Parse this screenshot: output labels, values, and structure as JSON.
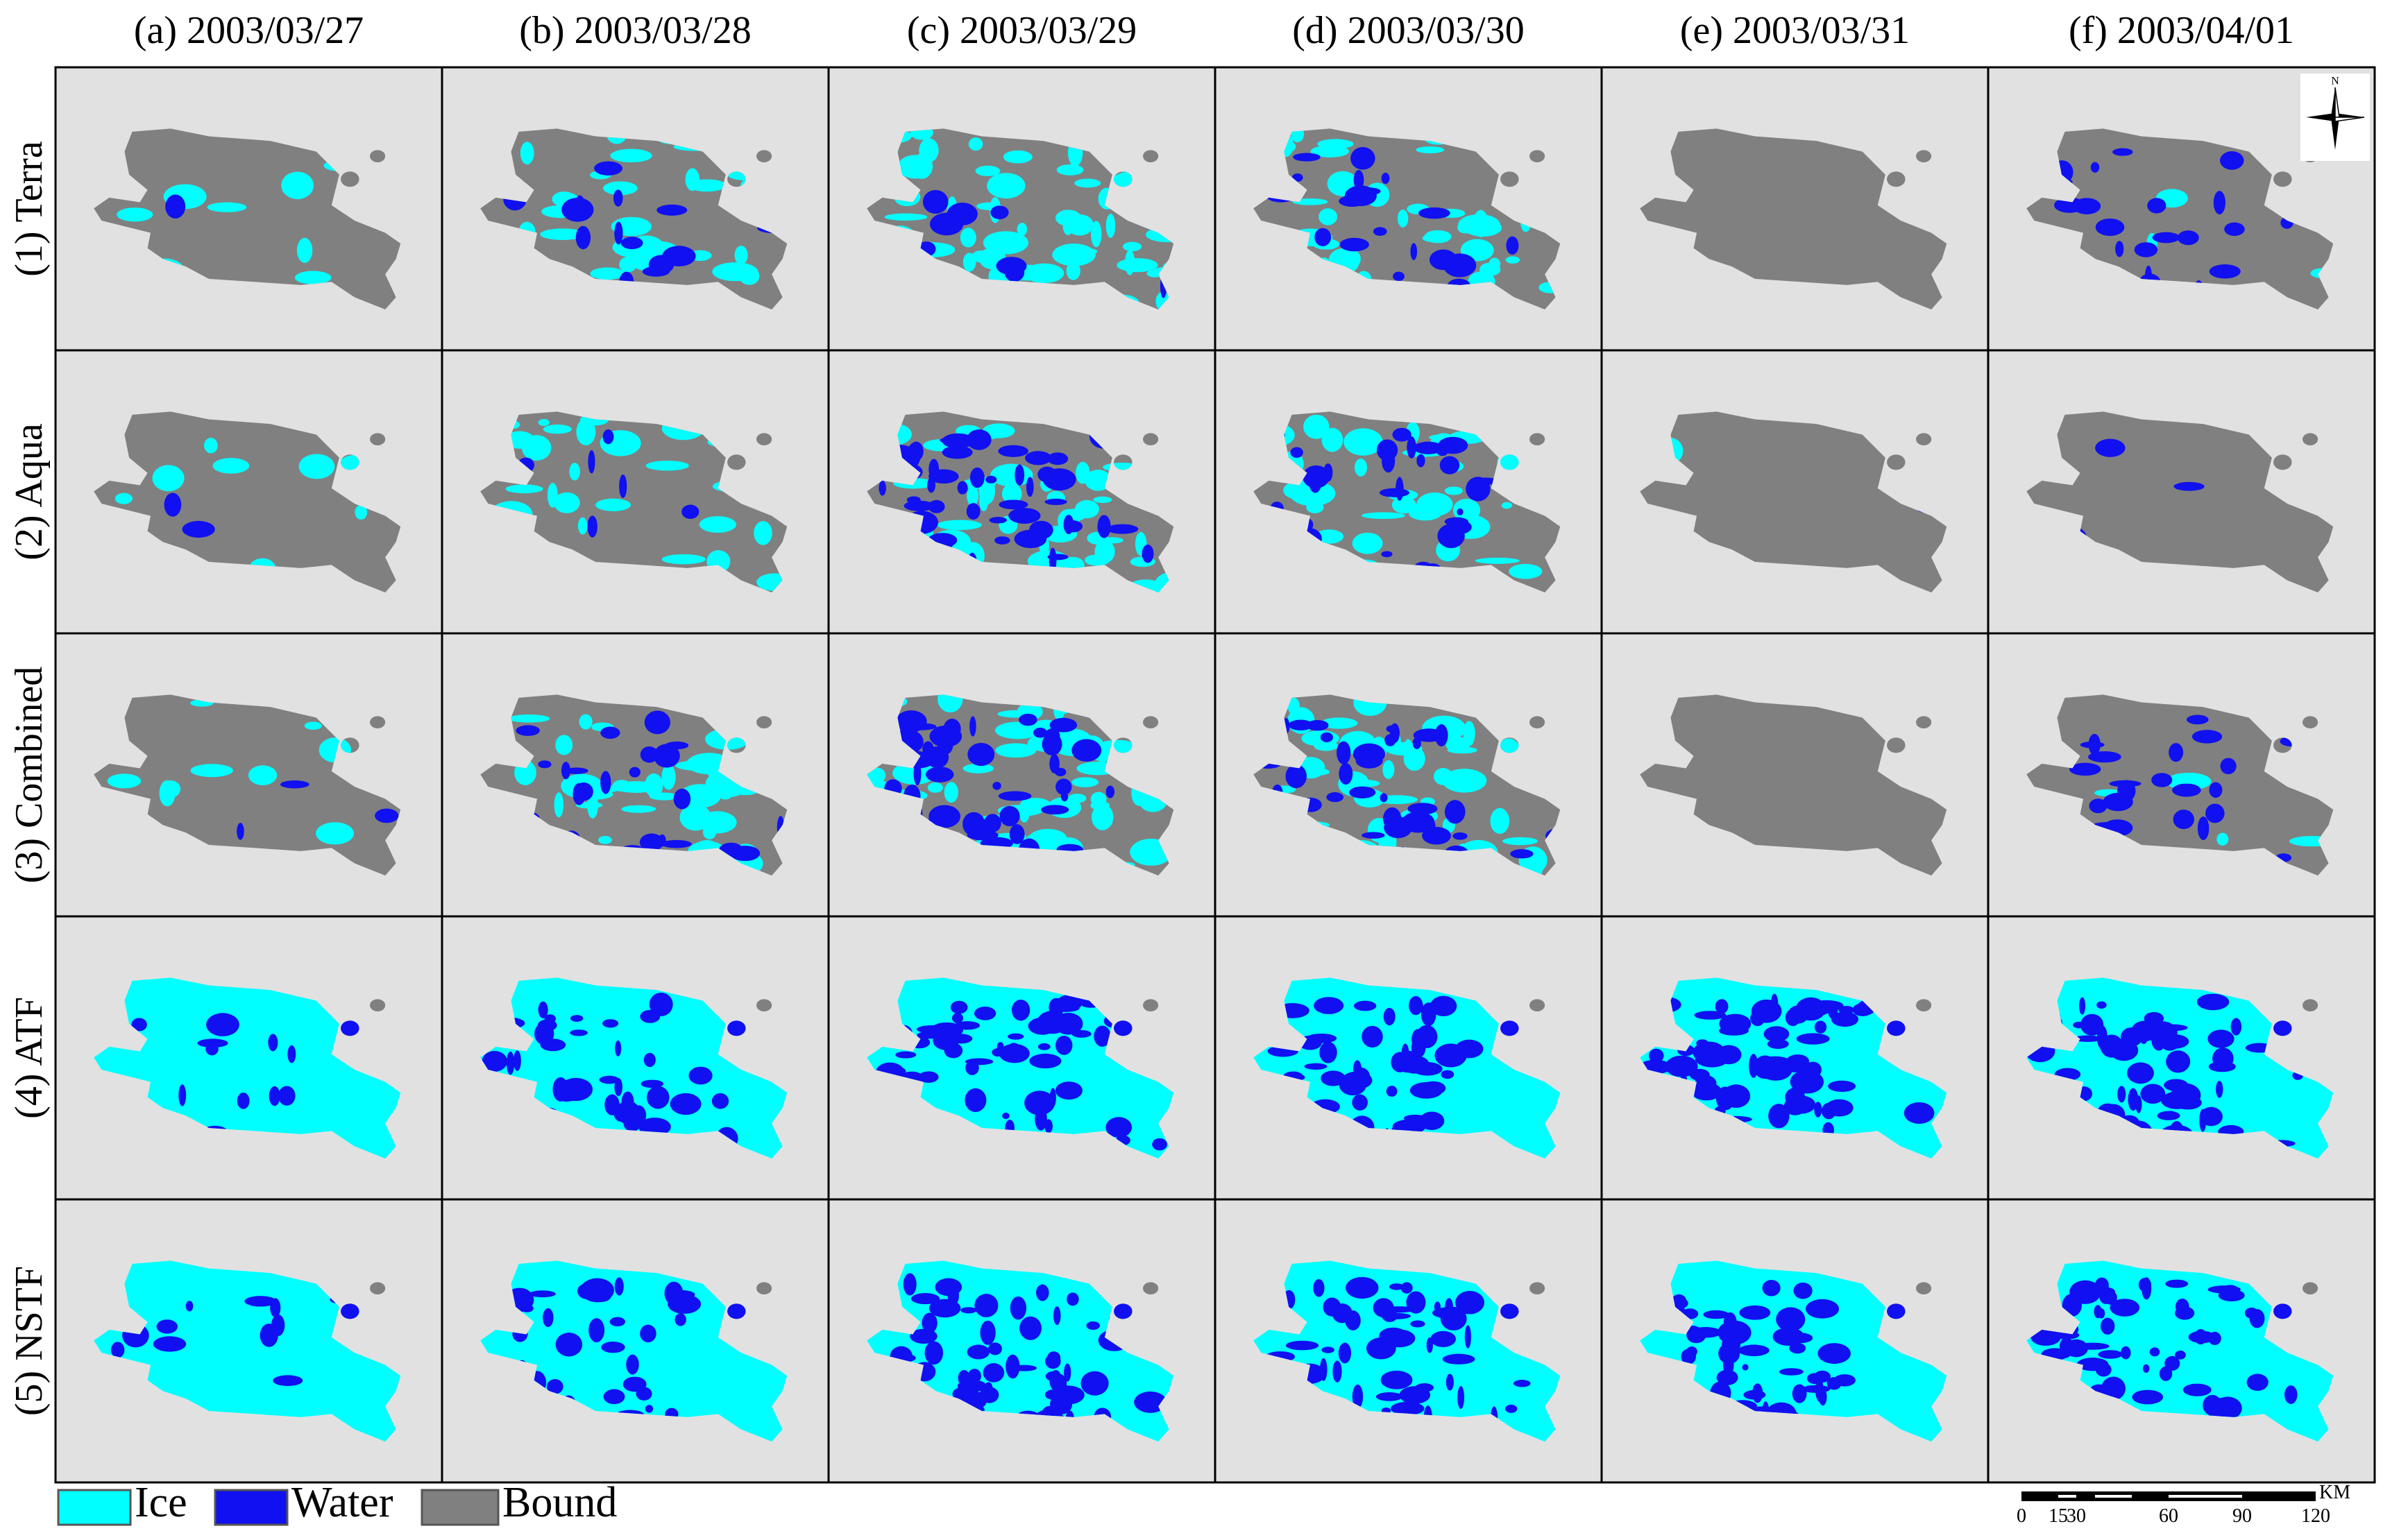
{
  "columns": [
    "(a) 2003/03/27",
    "(b) 2003/03/28",
    "(c) 2003/03/29",
    "(d) 2003/03/30",
    "(e) 2003/03/31",
    "(f) 2003/04/01"
  ],
  "rows": [
    "(1) Terra",
    "(2) Aqua",
    "(3) Combined",
    "(4) ATF",
    "(5) NSTF"
  ],
  "legend": [
    "Ice",
    "Water",
    "Bound"
  ],
  "north": "N",
  "scale_bar": {
    "labels": [
      "0",
      "15",
      "30",
      "60",
      "90",
      "120"
    ],
    "unit": "KM"
  }
}
